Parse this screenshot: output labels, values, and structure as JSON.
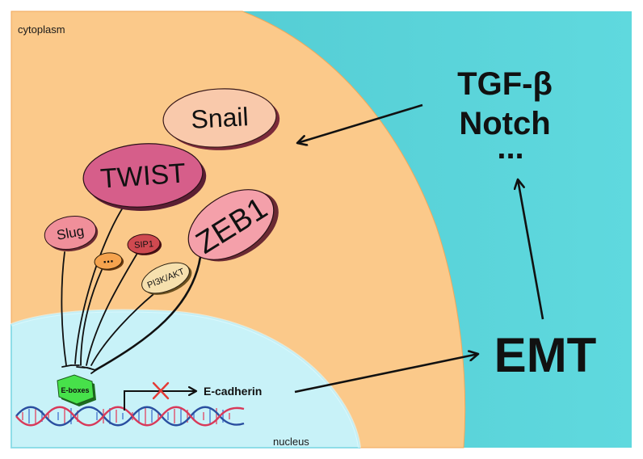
{
  "regions": {
    "cytoplasm_label": "cytoplasm",
    "nucleus_label": "nucleus"
  },
  "signals": {
    "line1": "TGF-β",
    "line2": "Notch",
    "line3": "..."
  },
  "process_label": "EMT",
  "transcription_factors": {
    "snail": "Snail",
    "twist": "TWIST",
    "zeb1": "ZEB1",
    "slug": "Slug",
    "sip1": "SIP1",
    "pi3k": "PI3K/AKT",
    "ellipsis": "..."
  },
  "promoter_label": "E-boxes",
  "target_gene": "E-cadherin",
  "colors": {
    "outer_background": "#55cfd4",
    "cytoplasm": "#fbc98a",
    "nucleus": "#c8f2f8",
    "snail": "#f9c9ab",
    "twist": "#d65e8a",
    "zeb1": "#f4a0aa",
    "slug": "#f08f9a",
    "sip1": "#cf4950",
    "pi3k": "#f6e0ae",
    "ellipsis_blob": "#f5a34e",
    "eboxes": "#47e14a",
    "inhibition_cross": "#e43b36"
  },
  "icons": [
    "dna-helix-icon",
    "hexagon-icon",
    "cross-icon"
  ]
}
